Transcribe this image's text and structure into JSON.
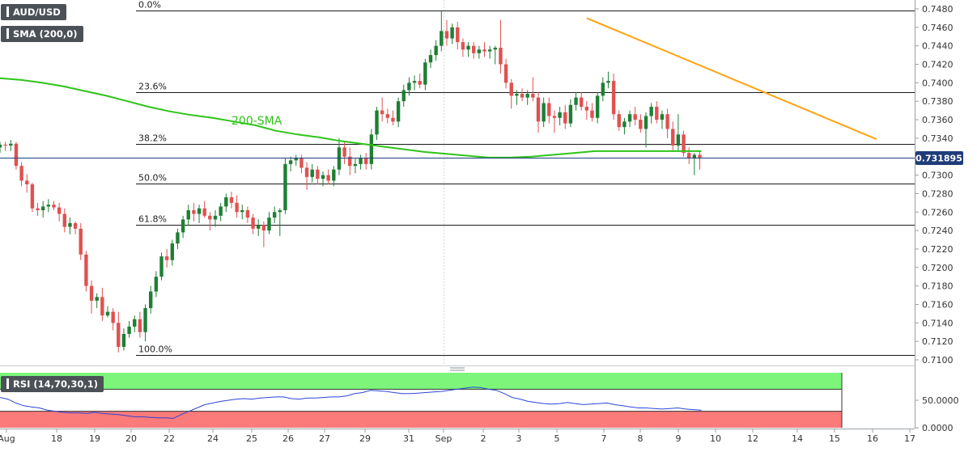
{
  "symbol": "AUD/USD",
  "indicator_label": "SMA (200,0)",
  "rsi_label": "RSI (14,70,30,1)",
  "sma_annotation": "200-SMA",
  "current_price": "0.731895",
  "colors": {
    "up": "#1e7f34",
    "down": "#e05151",
    "sma": "#2ec418",
    "trendline": "#ffa20d",
    "price_line": "#1f3c7a",
    "rsi_line": "#2b45d8",
    "rsi_overbought": "#7cf57a",
    "rsi_oversold": "#fb7a7a"
  },
  "chart_data": {
    "type": "candlestick",
    "x_ticks": [
      "Aug",
      "18",
      "19",
      "20",
      "22",
      "24",
      "25",
      "26",
      "27",
      "29",
      "31",
      "Sep",
      "2",
      "3",
      "5",
      "7",
      "8",
      "9",
      "10",
      "12",
      "14",
      "15",
      "16",
      "17"
    ],
    "y_ticks": [
      "0.7480",
      "0.7460",
      "0.7440",
      "0.7420",
      "0.7400",
      "0.7380",
      "0.7360",
      "0.7340",
      "0.7320",
      "0.7300",
      "0.7280",
      "0.7260",
      "0.7240",
      "0.7220",
      "0.7200",
      "0.7180",
      "0.7160",
      "0.7140",
      "0.7120",
      "0.7100"
    ],
    "ylim": [
      0.7094,
      0.7488
    ],
    "fibonacci": [
      {
        "label": "0.0%",
        "value": 0.7478
      },
      {
        "label": "23.6%",
        "value": 0.739
      },
      {
        "label": "38.2%",
        "value": 0.7334
      },
      {
        "label": "50.0%",
        "value": 0.7291
      },
      {
        "label": "61.8%",
        "value": 0.7246
      },
      {
        "label": "100.0%",
        "value": 0.7105
      }
    ],
    "candles": [
      {
        "o": 0.733,
        "h": 0.7336,
        "l": 0.7324,
        "c": 0.7333
      },
      {
        "o": 0.7333,
        "h": 0.7336,
        "l": 0.7326,
        "c": 0.7332
      },
      {
        "o": 0.7332,
        "h": 0.7338,
        "l": 0.7326,
        "c": 0.7334
      },
      {
        "o": 0.7334,
        "h": 0.7336,
        "l": 0.7306,
        "c": 0.731
      },
      {
        "o": 0.731,
        "h": 0.7314,
        "l": 0.7288,
        "c": 0.7294
      },
      {
        "o": 0.7294,
        "h": 0.7301,
        "l": 0.7281,
        "c": 0.729
      },
      {
        "o": 0.729,
        "h": 0.7292,
        "l": 0.726,
        "c": 0.7264
      },
      {
        "o": 0.7264,
        "h": 0.727,
        "l": 0.7256,
        "c": 0.7262
      },
      {
        "o": 0.7262,
        "h": 0.7272,
        "l": 0.7254,
        "c": 0.7266
      },
      {
        "o": 0.7266,
        "h": 0.7274,
        "l": 0.726,
        "c": 0.7268
      },
      {
        "o": 0.7268,
        "h": 0.7272,
        "l": 0.7262,
        "c": 0.7265
      },
      {
        "o": 0.7265,
        "h": 0.727,
        "l": 0.725,
        "c": 0.7258
      },
      {
        "o": 0.7258,
        "h": 0.7264,
        "l": 0.7238,
        "c": 0.7244
      },
      {
        "o": 0.7244,
        "h": 0.7254,
        "l": 0.7236,
        "c": 0.7248
      },
      {
        "o": 0.7248,
        "h": 0.725,
        "l": 0.7236,
        "c": 0.7242
      },
      {
        "o": 0.7242,
        "h": 0.7248,
        "l": 0.7208,
        "c": 0.7214
      },
      {
        "o": 0.7214,
        "h": 0.7218,
        "l": 0.7174,
        "c": 0.718
      },
      {
        "o": 0.718,
        "h": 0.7186,
        "l": 0.715,
        "c": 0.7164
      },
      {
        "o": 0.7164,
        "h": 0.7172,
        "l": 0.7156,
        "c": 0.7168
      },
      {
        "o": 0.7168,
        "h": 0.7178,
        "l": 0.7142,
        "c": 0.7148
      },
      {
        "o": 0.7148,
        "h": 0.7158,
        "l": 0.7146,
        "c": 0.7152
      },
      {
        "o": 0.7152,
        "h": 0.7156,
        "l": 0.7132,
        "c": 0.714
      },
      {
        "o": 0.714,
        "h": 0.7152,
        "l": 0.7108,
        "c": 0.7114
      },
      {
        "o": 0.7114,
        "h": 0.7134,
        "l": 0.711,
        "c": 0.7128
      },
      {
        "o": 0.7128,
        "h": 0.7142,
        "l": 0.7124,
        "c": 0.7136
      },
      {
        "o": 0.7136,
        "h": 0.7148,
        "l": 0.713,
        "c": 0.7144
      },
      {
        "o": 0.7144,
        "h": 0.7152,
        "l": 0.7124,
        "c": 0.713
      },
      {
        "o": 0.713,
        "h": 0.716,
        "l": 0.712,
        "c": 0.7156
      },
      {
        "o": 0.7156,
        "h": 0.718,
        "l": 0.715,
        "c": 0.7174
      },
      {
        "o": 0.7174,
        "h": 0.7196,
        "l": 0.7168,
        "c": 0.719
      },
      {
        "o": 0.719,
        "h": 0.7216,
        "l": 0.7186,
        "c": 0.7212
      },
      {
        "o": 0.7212,
        "h": 0.722,
        "l": 0.72,
        "c": 0.7208
      },
      {
        "o": 0.7208,
        "h": 0.723,
        "l": 0.7202,
        "c": 0.7226
      },
      {
        "o": 0.7226,
        "h": 0.7242,
        "l": 0.722,
        "c": 0.7238
      },
      {
        "o": 0.7238,
        "h": 0.7256,
        "l": 0.7232,
        "c": 0.7252
      },
      {
        "o": 0.7252,
        "h": 0.7268,
        "l": 0.7246,
        "c": 0.7262
      },
      {
        "o": 0.7262,
        "h": 0.727,
        "l": 0.725,
        "c": 0.7258
      },
      {
        "o": 0.7258,
        "h": 0.7268,
        "l": 0.7248,
        "c": 0.7264
      },
      {
        "o": 0.7264,
        "h": 0.7272,
        "l": 0.7254,
        "c": 0.7256
      },
      {
        "o": 0.7256,
        "h": 0.726,
        "l": 0.724,
        "c": 0.7252
      },
      {
        "o": 0.7252,
        "h": 0.7262,
        "l": 0.7244,
        "c": 0.7256
      },
      {
        "o": 0.7256,
        "h": 0.727,
        "l": 0.725,
        "c": 0.7266
      },
      {
        "o": 0.7266,
        "h": 0.728,
        "l": 0.726,
        "c": 0.7276
      },
      {
        "o": 0.7276,
        "h": 0.7282,
        "l": 0.7264,
        "c": 0.727
      },
      {
        "o": 0.727,
        "h": 0.7278,
        "l": 0.7254,
        "c": 0.726
      },
      {
        "o": 0.726,
        "h": 0.7268,
        "l": 0.7252,
        "c": 0.7262
      },
      {
        "o": 0.7262,
        "h": 0.7266,
        "l": 0.7248,
        "c": 0.7254
      },
      {
        "o": 0.7254,
        "h": 0.7258,
        "l": 0.7236,
        "c": 0.7242
      },
      {
        "o": 0.7242,
        "h": 0.7252,
        "l": 0.7234,
        "c": 0.7246
      },
      {
        "o": 0.7246,
        "h": 0.725,
        "l": 0.7222,
        "c": 0.724
      },
      {
        "o": 0.724,
        "h": 0.726,
        "l": 0.7236,
        "c": 0.7254
      },
      {
        "o": 0.7254,
        "h": 0.7266,
        "l": 0.7248,
        "c": 0.726
      },
      {
        "o": 0.726,
        "h": 0.7264,
        "l": 0.7234,
        "c": 0.7262
      },
      {
        "o": 0.7262,
        "h": 0.7318,
        "l": 0.7258,
        "c": 0.7312
      },
      {
        "o": 0.7312,
        "h": 0.732,
        "l": 0.7304,
        "c": 0.7316
      },
      {
        "o": 0.7316,
        "h": 0.7322,
        "l": 0.731,
        "c": 0.7318
      },
      {
        "o": 0.7318,
        "h": 0.7322,
        "l": 0.7302,
        "c": 0.7308
      },
      {
        "o": 0.7308,
        "h": 0.7314,
        "l": 0.7284,
        "c": 0.7298
      },
      {
        "o": 0.7298,
        "h": 0.7312,
        "l": 0.7292,
        "c": 0.7306
      },
      {
        "o": 0.7306,
        "h": 0.731,
        "l": 0.729,
        "c": 0.7296
      },
      {
        "o": 0.7296,
        "h": 0.7304,
        "l": 0.7288,
        "c": 0.73
      },
      {
        "o": 0.73,
        "h": 0.7306,
        "l": 0.729,
        "c": 0.7294
      },
      {
        "o": 0.7294,
        "h": 0.731,
        "l": 0.7288,
        "c": 0.7306
      },
      {
        "o": 0.7306,
        "h": 0.734,
        "l": 0.73,
        "c": 0.733
      },
      {
        "o": 0.733,
        "h": 0.7336,
        "l": 0.7312,
        "c": 0.732
      },
      {
        "o": 0.732,
        "h": 0.733,
        "l": 0.73,
        "c": 0.731
      },
      {
        "o": 0.731,
        "h": 0.7318,
        "l": 0.7302,
        "c": 0.7312
      },
      {
        "o": 0.7312,
        "h": 0.7322,
        "l": 0.7306,
        "c": 0.7318
      },
      {
        "o": 0.7318,
        "h": 0.7324,
        "l": 0.7306,
        "c": 0.7312
      },
      {
        "o": 0.7312,
        "h": 0.735,
        "l": 0.7306,
        "c": 0.7344
      },
      {
        "o": 0.7344,
        "h": 0.7374,
        "l": 0.7338,
        "c": 0.737
      },
      {
        "o": 0.737,
        "h": 0.7384,
        "l": 0.7358,
        "c": 0.7366
      },
      {
        "o": 0.7366,
        "h": 0.7372,
        "l": 0.7356,
        "c": 0.7362
      },
      {
        "o": 0.7362,
        "h": 0.737,
        "l": 0.7354,
        "c": 0.7358
      },
      {
        "o": 0.7358,
        "h": 0.7384,
        "l": 0.7352,
        "c": 0.738
      },
      {
        "o": 0.738,
        "h": 0.7398,
        "l": 0.7374,
        "c": 0.7392
      },
      {
        "o": 0.7392,
        "h": 0.7406,
        "l": 0.7386,
        "c": 0.74
      },
      {
        "o": 0.74,
        "h": 0.7408,
        "l": 0.7392,
        "c": 0.7402
      },
      {
        "o": 0.7402,
        "h": 0.741,
        "l": 0.7394,
        "c": 0.7398
      },
      {
        "o": 0.7398,
        "h": 0.7426,
        "l": 0.7392,
        "c": 0.7422
      },
      {
        "o": 0.7422,
        "h": 0.7436,
        "l": 0.7416,
        "c": 0.743
      },
      {
        "o": 0.743,
        "h": 0.7446,
        "l": 0.7424,
        "c": 0.744
      },
      {
        "o": 0.744,
        "h": 0.7478,
        "l": 0.7434,
        "c": 0.7456
      },
      {
        "o": 0.7456,
        "h": 0.7468,
        "l": 0.744,
        "c": 0.7448
      },
      {
        "o": 0.7448,
        "h": 0.7464,
        "l": 0.7442,
        "c": 0.746
      },
      {
        "o": 0.746,
        "h": 0.7466,
        "l": 0.7436,
        "c": 0.7444
      },
      {
        "o": 0.7444,
        "h": 0.7448,
        "l": 0.7428,
        "c": 0.7436
      },
      {
        "o": 0.7436,
        "h": 0.7444,
        "l": 0.7428,
        "c": 0.744
      },
      {
        "o": 0.744,
        "h": 0.7444,
        "l": 0.7426,
        "c": 0.7432
      },
      {
        "o": 0.7432,
        "h": 0.744,
        "l": 0.7426,
        "c": 0.7436
      },
      {
        "o": 0.7436,
        "h": 0.7444,
        "l": 0.7428,
        "c": 0.7434
      },
      {
        "o": 0.7434,
        "h": 0.744,
        "l": 0.7426,
        "c": 0.7436
      },
      {
        "o": 0.7436,
        "h": 0.744,
        "l": 0.742,
        "c": 0.7438
      },
      {
        "o": 0.7438,
        "h": 0.7468,
        "l": 0.741,
        "c": 0.742
      },
      {
        "o": 0.742,
        "h": 0.7426,
        "l": 0.7394,
        "c": 0.74
      },
      {
        "o": 0.74,
        "h": 0.7404,
        "l": 0.7372,
        "c": 0.7386
      },
      {
        "o": 0.7386,
        "h": 0.7392,
        "l": 0.7376,
        "c": 0.7388
      },
      {
        "o": 0.7388,
        "h": 0.7394,
        "l": 0.738,
        "c": 0.7384
      },
      {
        "o": 0.7384,
        "h": 0.7392,
        "l": 0.7376,
        "c": 0.7388
      },
      {
        "o": 0.7388,
        "h": 0.7406,
        "l": 0.738,
        "c": 0.7384
      },
      {
        "o": 0.7384,
        "h": 0.739,
        "l": 0.7346,
        "c": 0.7358
      },
      {
        "o": 0.7358,
        "h": 0.7384,
        "l": 0.7352,
        "c": 0.7378
      },
      {
        "o": 0.7378,
        "h": 0.7384,
        "l": 0.7356,
        "c": 0.7364
      },
      {
        "o": 0.7364,
        "h": 0.737,
        "l": 0.7346,
        "c": 0.7362
      },
      {
        "o": 0.7362,
        "h": 0.7374,
        "l": 0.7354,
        "c": 0.7368
      },
      {
        "o": 0.7368,
        "h": 0.7376,
        "l": 0.735,
        "c": 0.7356
      },
      {
        "o": 0.7356,
        "h": 0.7382,
        "l": 0.7352,
        "c": 0.7376
      },
      {
        "o": 0.7376,
        "h": 0.739,
        "l": 0.737,
        "c": 0.7384
      },
      {
        "o": 0.7384,
        "h": 0.739,
        "l": 0.737,
        "c": 0.7374
      },
      {
        "o": 0.7374,
        "h": 0.738,
        "l": 0.736,
        "c": 0.737
      },
      {
        "o": 0.737,
        "h": 0.7378,
        "l": 0.7358,
        "c": 0.7362
      },
      {
        "o": 0.7362,
        "h": 0.739,
        "l": 0.7356,
        "c": 0.7386
      },
      {
        "o": 0.7386,
        "h": 0.7406,
        "l": 0.738,
        "c": 0.74
      },
      {
        "o": 0.74,
        "h": 0.7412,
        "l": 0.7394,
        "c": 0.7402
      },
      {
        "o": 0.7402,
        "h": 0.741,
        "l": 0.736,
        "c": 0.7366
      },
      {
        "o": 0.7366,
        "h": 0.737,
        "l": 0.7348,
        "c": 0.7352
      },
      {
        "o": 0.7352,
        "h": 0.7362,
        "l": 0.7344,
        "c": 0.7358
      },
      {
        "o": 0.7358,
        "h": 0.737,
        "l": 0.7352,
        "c": 0.7366
      },
      {
        "o": 0.7366,
        "h": 0.7374,
        "l": 0.7354,
        "c": 0.736
      },
      {
        "o": 0.736,
        "h": 0.7366,
        "l": 0.7346,
        "c": 0.735
      },
      {
        "o": 0.735,
        "h": 0.7368,
        "l": 0.733,
        "c": 0.7364
      },
      {
        "o": 0.7364,
        "h": 0.7378,
        "l": 0.7356,
        "c": 0.7374
      },
      {
        "o": 0.7374,
        "h": 0.738,
        "l": 0.7356,
        "c": 0.736
      },
      {
        "o": 0.736,
        "h": 0.737,
        "l": 0.735,
        "c": 0.7366
      },
      {
        "o": 0.7366,
        "h": 0.7372,
        "l": 0.734,
        "c": 0.735
      },
      {
        "o": 0.735,
        "h": 0.7358,
        "l": 0.7326,
        "c": 0.7332
      },
      {
        "o": 0.7332,
        "h": 0.7366,
        "l": 0.7326,
        "c": 0.7344
      },
      {
        "o": 0.7344,
        "h": 0.7348,
        "l": 0.732,
        "c": 0.7324
      },
      {
        "o": 0.7324,
        "h": 0.733,
        "l": 0.7312,
        "c": 0.7318
      },
      {
        "o": 0.7318,
        "h": 0.7324,
        "l": 0.73,
        "c": 0.7322
      },
      {
        "o": 0.7322,
        "h": 0.7326,
        "l": 0.7306,
        "c": 0.7319
      }
    ],
    "sma_200": [
      0.7405,
      0.7403,
      0.74,
      0.7396,
      0.7391,
      0.7386,
      0.738,
      0.7374,
      0.7369,
      0.7365,
      0.7362,
      0.7358,
      0.7354,
      0.7348,
      0.7344,
      0.7341,
      0.7337,
      0.7334,
      0.7331,
      0.7328,
      0.7325,
      0.7323,
      0.7321,
      0.7319,
      0.7319,
      0.732,
      0.7322,
      0.7324,
      0.7326,
      0.7326,
      0.7326,
      0.7326,
      0.7326,
      0.7326
    ],
    "trendline": [
      {
        "i": 109,
        "v": 0.747
      },
      {
        "i": 158,
        "v": 0.7339
      }
    ],
    "rsi": {
      "y_ticks": [
        "50.0000",
        "0.0000"
      ],
      "overbought": 70,
      "oversold": 30,
      "ylim": [
        0,
        100
      ],
      "values": [
        55,
        52,
        45,
        40,
        38,
        36,
        32,
        30,
        28,
        27,
        27,
        26,
        28,
        26,
        25,
        24,
        22,
        20,
        20,
        19,
        18,
        18,
        17,
        24,
        30,
        36,
        42,
        45,
        48,
        50,
        52,
        53,
        52,
        54,
        55,
        56,
        56,
        53,
        52,
        54,
        54,
        55,
        56,
        56,
        58,
        62,
        64,
        68,
        67,
        66,
        64,
        62,
        62,
        63,
        64,
        65,
        66,
        68,
        70,
        72,
        74,
        73,
        70,
        68,
        62,
        55,
        52,
        48,
        46,
        44,
        43,
        44,
        46,
        44,
        42,
        43,
        44,
        45,
        42,
        40,
        38,
        36,
        36,
        35,
        34,
        35,
        36,
        34,
        33,
        32
      ]
    }
  }
}
